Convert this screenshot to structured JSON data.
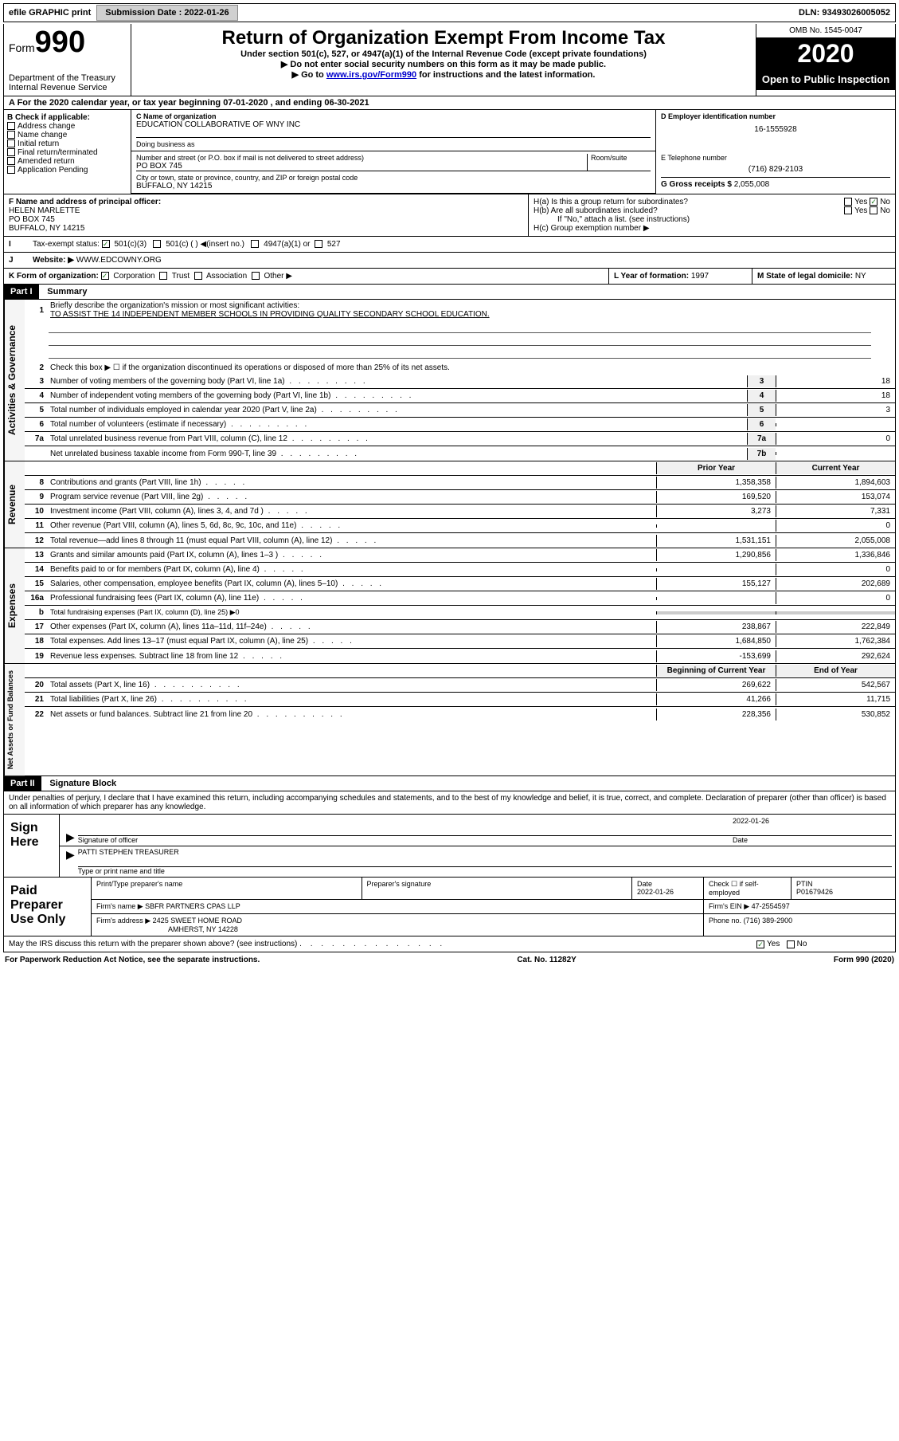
{
  "topbar": {
    "efile": "efile GRAPHIC print",
    "sub_label": "Submission Date :",
    "sub_date": "2022-01-26",
    "dln_label": "DLN:",
    "dln": "93493026005052"
  },
  "header": {
    "form_word": "Form",
    "form_num": "990",
    "dept1": "Department of the Treasury",
    "dept2": "Internal Revenue Service",
    "title": "Return of Organization Exempt From Income Tax",
    "sub1": "Under section 501(c), 527, or 4947(a)(1) of the Internal Revenue Code (except private foundations)",
    "sub2": "▶ Do not enter social security numbers on this form as it may be made public.",
    "sub3a": "▶ Go to ",
    "link": "www.irs.gov/Form990",
    "sub3b": " for instructions and the latest information.",
    "omb": "OMB No. 1545-0047",
    "year": "2020",
    "open": "Open to Public Inspection"
  },
  "rowA": "A For the 2020 calendar year, or tax year beginning 07-01-2020    , and ending 06-30-2021",
  "checkB": {
    "label": "B Check if applicable:",
    "items": [
      "Address change",
      "Name change",
      "Initial return",
      "Final return/terminated",
      "Amended return",
      "Application Pending"
    ]
  },
  "orgC": {
    "name_label": "C Name of organization",
    "name": "EDUCATION COLLABORATIVE OF WNY INC",
    "dba_label": "Doing business as",
    "dba": "",
    "addr_label": "Number and street (or P.O. box if mail is not delivered to street address)",
    "room_label": "Room/suite",
    "addr": "PO BOX 745",
    "city_label": "City or town, state or province, country, and ZIP or foreign postal code",
    "city": "BUFFALO, NY  14215"
  },
  "rightD": {
    "ein_label": "D Employer identification number",
    "ein": "16-1555928",
    "phone_label": "E Telephone number",
    "phone": "(716) 829-2103",
    "gross_label": "G Gross receipts $",
    "gross": "2,055,008"
  },
  "rowF": {
    "label": "F  Name and address of principal officer:",
    "name": "HELEN MARLETTE",
    "addr1": "PO BOX 745",
    "addr2": "BUFFALO, NY  14215"
  },
  "rowH": {
    "a": "H(a)  Is this a group return for subordinates?",
    "b": "H(b)  Are all subordinates included?",
    "note": "If \"No,\" attach a list. (see instructions)",
    "c": "H(c)  Group exemption number ▶",
    "yes": "Yes",
    "no": "No"
  },
  "rowI": {
    "label": "Tax-exempt status:",
    "opt1": "501(c)(3)",
    "opt2": "501(c) (   ) ◀(insert no.)",
    "opt3": "4947(a)(1) or",
    "opt4": "527"
  },
  "rowJ": {
    "label": "Website: ▶",
    "val": "WWW.EDCOWNY.ORG"
  },
  "rowK": {
    "label": "K Form of organization:",
    "opts": [
      "Corporation",
      "Trust",
      "Association",
      "Other ▶"
    ]
  },
  "rowL": {
    "label": "L Year of formation:",
    "val": "1997"
  },
  "rowM": {
    "label": "M State of legal domicile:",
    "val": "NY"
  },
  "part1": {
    "tag": "Part I",
    "title": "Summary",
    "vert1": "Activities & Governance",
    "vert2": "Revenue",
    "vert3": "Expenses",
    "vert4": "Net Assets or Fund Balances",
    "q1": "Briefly describe the organization's mission or most significant activities:",
    "q1val": "TO ASSIST THE 14 INDEPENDENT MEMBER SCHOOLS IN PROVIDING QUALITY SECONDARY SCHOOL EDUCATION.",
    "q2": "Check this box ▶ ☐  if the organization discontinued its operations or disposed of more than 25% of its net assets.",
    "lines_gov": [
      {
        "n": "3",
        "t": "Number of voting members of the governing body (Part VI, line 1a)",
        "box": "3",
        "v": "18"
      },
      {
        "n": "4",
        "t": "Number of independent voting members of the governing body (Part VI, line 1b)",
        "box": "4",
        "v": "18"
      },
      {
        "n": "5",
        "t": "Total number of individuals employed in calendar year 2020 (Part V, line 2a)",
        "box": "5",
        "v": "3"
      },
      {
        "n": "6",
        "t": "Total number of volunteers (estimate if necessary)",
        "box": "6",
        "v": ""
      },
      {
        "n": "7a",
        "t": "Total unrelated business revenue from Part VIII, column (C), line 12",
        "box": "7a",
        "v": "0"
      },
      {
        "n": "",
        "t": "Net unrelated business taxable income from Form 990-T, line 39",
        "box": "7b",
        "v": ""
      }
    ],
    "col_prior": "Prior Year",
    "col_current": "Current Year",
    "col_boy": "Beginning of Current Year",
    "col_eoy": "End of Year",
    "lines_rev": [
      {
        "n": "8",
        "t": "Contributions and grants (Part VIII, line 1h)",
        "p": "1,358,358",
        "c": "1,894,603"
      },
      {
        "n": "9",
        "t": "Program service revenue (Part VIII, line 2g)",
        "p": "169,520",
        "c": "153,074"
      },
      {
        "n": "10",
        "t": "Investment income (Part VIII, column (A), lines 3, 4, and 7d )",
        "p": "3,273",
        "c": "7,331"
      },
      {
        "n": "11",
        "t": "Other revenue (Part VIII, column (A), lines 5, 6d, 8c, 9c, 10c, and 11e)",
        "p": "",
        "c": "0"
      },
      {
        "n": "12",
        "t": "Total revenue—add lines 8 through 11 (must equal Part VIII, column (A), line 12)",
        "p": "1,531,151",
        "c": "2,055,008"
      }
    ],
    "lines_exp": [
      {
        "n": "13",
        "t": "Grants and similar amounts paid (Part IX, column (A), lines 1–3 )",
        "p": "1,290,856",
        "c": "1,336,846"
      },
      {
        "n": "14",
        "t": "Benefits paid to or for members (Part IX, column (A), line 4)",
        "p": "",
        "c": "0"
      },
      {
        "n": "15",
        "t": "Salaries, other compensation, employee benefits (Part IX, column (A), lines 5–10)",
        "p": "155,127",
        "c": "202,689"
      },
      {
        "n": "16a",
        "t": "Professional fundraising fees (Part IX, column (A), line 11e)",
        "p": "",
        "c": "0"
      },
      {
        "n": "b",
        "t": "Total fundraising expenses (Part IX, column (D), line 25) ▶0",
        "p": "—",
        "c": "—"
      },
      {
        "n": "17",
        "t": "Other expenses (Part IX, column (A), lines 11a–11d, 11f–24e)",
        "p": "238,867",
        "c": "222,849"
      },
      {
        "n": "18",
        "t": "Total expenses. Add lines 13–17 (must equal Part IX, column (A), line 25)",
        "p": "1,684,850",
        "c": "1,762,384"
      },
      {
        "n": "19",
        "t": "Revenue less expenses. Subtract line 18 from line 12",
        "p": "-153,699",
        "c": "292,624"
      }
    ],
    "lines_net": [
      {
        "n": "20",
        "t": "Total assets (Part X, line 16)",
        "p": "269,622",
        "c": "542,567"
      },
      {
        "n": "21",
        "t": "Total liabilities (Part X, line 26)",
        "p": "41,266",
        "c": "11,715"
      },
      {
        "n": "22",
        "t": "Net assets or fund balances. Subtract line 21 from line 20",
        "p": "228,356",
        "c": "530,852"
      }
    ]
  },
  "part2": {
    "tag": "Part II",
    "title": "Signature Block",
    "decl": "Under penalties of perjury, I declare that I have examined this return, including accompanying schedules and statements, and to the best of my knowledge and belief, it is true, correct, and complete. Declaration of preparer (other than officer) is based on all information of which preparer has any knowledge."
  },
  "sign": {
    "left": "Sign Here",
    "sig_label": "Signature of officer",
    "date_label": "Date",
    "date": "2022-01-26",
    "name": "PATTI STEPHEN  TREASURER",
    "name_label": "Type or print name and title"
  },
  "prep": {
    "left": "Paid Preparer Use Only",
    "c1": "Print/Type preparer's name",
    "c2": "Preparer's signature",
    "c3": "Date",
    "c3v": "2022-01-26",
    "c4": "Check ☐ if self-employed",
    "c5": "PTIN",
    "c5v": "P01679426",
    "firm_label": "Firm's name     ▶",
    "firm": "SBFR PARTNERS CPAS LLP",
    "ein_label": "Firm's EIN ▶",
    "ein": "47-2554597",
    "addr_label": "Firm's address ▶",
    "addr1": "2425 SWEET HOME ROAD",
    "addr2": "AMHERST, NY  14228",
    "phone_label": "Phone no.",
    "phone": "(716) 389-2900"
  },
  "discuss": {
    "q": "May the IRS discuss this return with the preparer shown above? (see instructions)",
    "yes": "Yes",
    "no": "No"
  },
  "footer": {
    "left": "For Paperwork Reduction Act Notice, see the separate instructions.",
    "mid": "Cat. No. 11282Y",
    "right": "Form 990 (2020)"
  }
}
